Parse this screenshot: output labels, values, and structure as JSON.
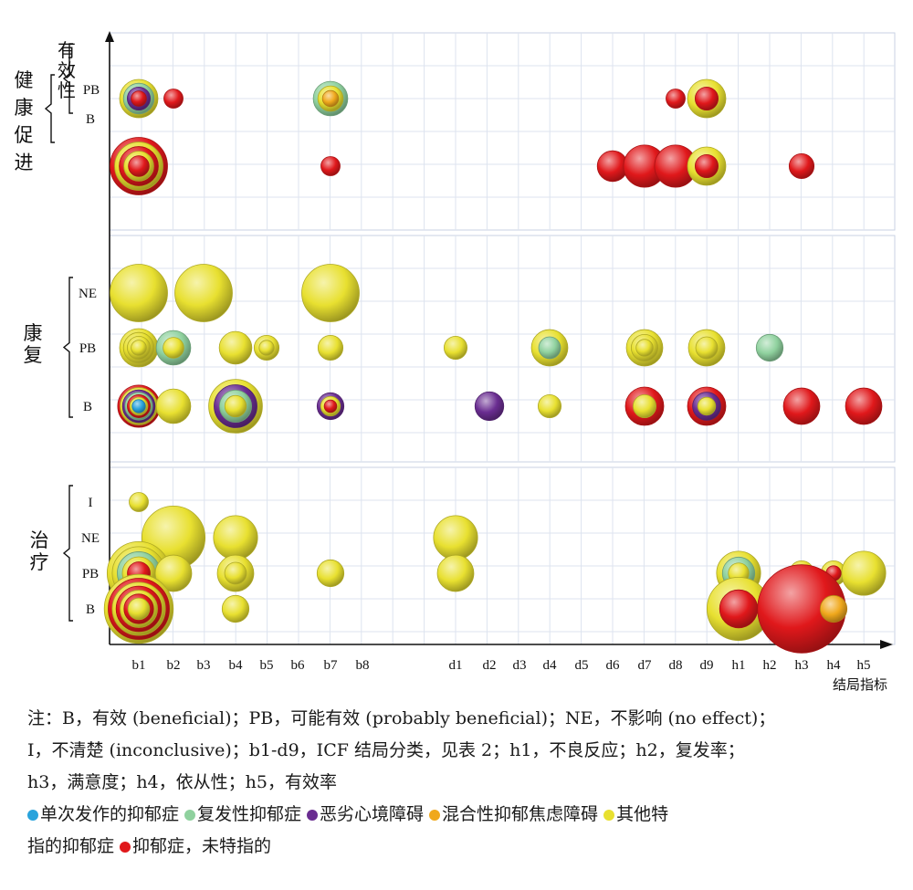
{
  "colors": {
    "single": "#29a3dc",
    "recurrent": "#8fd19e",
    "dysthymia": "#6a2d91",
    "mixed": "#f0a81c",
    "other": "#e8e030",
    "unspecified": "#e0181b"
  },
  "chart_data": {
    "type": "bubble",
    "title": "",
    "xlabel": "结局指标",
    "ylabel": "",
    "categories": [
      "b1",
      "b2",
      "b3",
      "b4",
      "b5",
      "b6",
      "b7",
      "b8",
      "d1",
      "d2",
      "d3",
      "d4",
      "d5",
      "d6",
      "d7",
      "d8",
      "d9",
      "h1",
      "h2",
      "h3",
      "h4",
      "h5"
    ],
    "groups": [
      {
        "name": "健康促进",
        "sublabel": "有效性",
        "rows": [
          "PB",
          "B"
        ]
      },
      {
        "name": "康复",
        "sublabel": "",
        "rows": [
          "NE",
          "PB",
          "B"
        ]
      },
      {
        "name": "治疗",
        "sublabel": "",
        "rows": [
          "I",
          "NE",
          "PB",
          "B"
        ]
      }
    ],
    "series": [
      {
        "name": "单次发作的抑郁症",
        "color_key": "single"
      },
      {
        "name": "复发性抑郁症",
        "color_key": "recurrent"
      },
      {
        "name": "恶劣心境障碍",
        "color_key": "dysthymia"
      },
      {
        "name": "混合性抑郁焦虑障碍",
        "color_key": "mixed"
      },
      {
        "name": "其他特指的抑郁症",
        "color_key": "other"
      },
      {
        "name": "抑郁症，未特指的",
        "color_key": "unspecified"
      }
    ],
    "bubbles": [
      {
        "group": 0,
        "row": "PB",
        "x": "b1",
        "size": 2,
        "layers": [
          "other",
          "recurrent",
          "dysthymia",
          "unspecified"
        ]
      },
      {
        "group": 0,
        "row": "PB",
        "x": "b2",
        "size": 1,
        "layers": [
          "unspecified"
        ]
      },
      {
        "group": 0,
        "row": "PB",
        "x": "b7",
        "size": 1.8,
        "layers": [
          "recurrent",
          "other",
          "mixed"
        ]
      },
      {
        "group": 0,
        "row": "PB",
        "x": "d8",
        "size": 1,
        "layers": [
          "unspecified"
        ]
      },
      {
        "group": 0,
        "row": "PB",
        "x": "d9",
        "size": 2,
        "layers": [
          "other",
          "unspecified"
        ]
      },
      {
        "group": 0,
        "row": "B",
        "x": "b1",
        "size": 3,
        "layers": [
          "unspecified",
          "other",
          "unspecified",
          "other",
          "unspecified"
        ]
      },
      {
        "group": 0,
        "row": "B",
        "x": "b7",
        "size": 1,
        "layers": [
          "unspecified"
        ]
      },
      {
        "group": 0,
        "row": "B",
        "x": "d6",
        "size": 1.6,
        "layers": [
          "unspecified"
        ]
      },
      {
        "group": 0,
        "row": "B",
        "x": "d7",
        "size": 2.2,
        "layers": [
          "unspecified"
        ]
      },
      {
        "group": 0,
        "row": "B",
        "x": "d8",
        "size": 2.2,
        "layers": [
          "unspecified"
        ]
      },
      {
        "group": 0,
        "row": "B",
        "x": "d9",
        "size": 2,
        "layers": [
          "other",
          "unspecified"
        ]
      },
      {
        "group": 0,
        "row": "B",
        "x": "h3",
        "size": 1.3,
        "layers": [
          "unspecified"
        ]
      },
      {
        "group": 1,
        "row": "NE",
        "x": "b1",
        "size": 3,
        "layers": [
          "other"
        ]
      },
      {
        "group": 1,
        "row": "NE",
        "x": "b3",
        "size": 3,
        "layers": [
          "other"
        ]
      },
      {
        "group": 1,
        "row": "NE",
        "x": "b7",
        "size": 3,
        "layers": [
          "other"
        ]
      },
      {
        "group": 1,
        "row": "PB",
        "x": "b1",
        "size": 2,
        "layers": [
          "other",
          "other",
          "other",
          "other"
        ]
      },
      {
        "group": 1,
        "row": "PB",
        "x": "b2",
        "size": 1.8,
        "layers": [
          "recurrent",
          "other"
        ]
      },
      {
        "group": 1,
        "row": "PB",
        "x": "b4",
        "size": 1.7,
        "layers": [
          "other"
        ]
      },
      {
        "group": 1,
        "row": "PB",
        "x": "b5",
        "size": 1.3,
        "layers": [
          "other",
          "other"
        ]
      },
      {
        "group": 1,
        "row": "PB",
        "x": "b7",
        "size": 1.3,
        "layers": [
          "other"
        ]
      },
      {
        "group": 1,
        "row": "PB",
        "x": "d1",
        "size": 1.2,
        "layers": [
          "other"
        ]
      },
      {
        "group": 1,
        "row": "PB",
        "x": "d4",
        "size": 1.9,
        "layers": [
          "other",
          "recurrent"
        ]
      },
      {
        "group": 1,
        "row": "PB",
        "x": "d7",
        "size": 1.9,
        "layers": [
          "other",
          "other",
          "other"
        ]
      },
      {
        "group": 1,
        "row": "PB",
        "x": "d9",
        "size": 1.9,
        "layers": [
          "other",
          "other"
        ]
      },
      {
        "group": 1,
        "row": "PB",
        "x": "h2",
        "size": 1.4,
        "layers": [
          "recurrent"
        ]
      },
      {
        "group": 1,
        "row": "B",
        "x": "b1",
        "size": 2.2,
        "layers": [
          "unspecified",
          "other",
          "dysthymia",
          "recurrent",
          "unspecified",
          "other",
          "single"
        ]
      },
      {
        "group": 1,
        "row": "B",
        "x": "b2",
        "size": 1.8,
        "layers": [
          "other"
        ]
      },
      {
        "group": 1,
        "row": "B",
        "x": "b4",
        "size": 2.8,
        "layers": [
          "other",
          "dysthymia",
          "recurrent",
          "other"
        ]
      },
      {
        "group": 1,
        "row": "B",
        "x": "b7",
        "size": 1.4,
        "layers": [
          "dysthymia",
          "other",
          "unspecified"
        ]
      },
      {
        "group": 1,
        "row": "B",
        "x": "d2",
        "size": 1.5,
        "layers": [
          "dysthymia"
        ]
      },
      {
        "group": 1,
        "row": "B",
        "x": "d4",
        "size": 1.2,
        "layers": [
          "other"
        ]
      },
      {
        "group": 1,
        "row": "B",
        "x": "d7",
        "size": 2,
        "layers": [
          "unspecified",
          "other"
        ]
      },
      {
        "group": 1,
        "row": "B",
        "x": "d9",
        "size": 2,
        "layers": [
          "unspecified",
          "dysthymia",
          "other"
        ]
      },
      {
        "group": 1,
        "row": "B",
        "x": "h3",
        "size": 1.9,
        "layers": [
          "unspecified"
        ]
      },
      {
        "group": 1,
        "row": "B",
        "x": "h5",
        "size": 1.9,
        "layers": [
          "unspecified"
        ]
      },
      {
        "group": 2,
        "row": "I",
        "x": "b1",
        "size": 1,
        "layers": [
          "other"
        ]
      },
      {
        "group": 2,
        "row": "NE",
        "x": "b2",
        "size": 3.3,
        "layers": [
          "other"
        ]
      },
      {
        "group": 2,
        "row": "NE",
        "x": "b4",
        "size": 2.3,
        "layers": [
          "other"
        ]
      },
      {
        "group": 2,
        "row": "NE",
        "x": "d1",
        "size": 2.3,
        "layers": [
          "other"
        ]
      },
      {
        "group": 2,
        "row": "PB",
        "x": "b1",
        "size": 3.3,
        "layers": [
          "other",
          "other",
          "recurrent",
          "other",
          "unspecified"
        ]
      },
      {
        "group": 2,
        "row": "PB",
        "x": "b2",
        "size": 1.9,
        "layers": [
          "other"
        ]
      },
      {
        "group": 2,
        "row": "PB",
        "x": "b4",
        "size": 1.9,
        "layers": [
          "other",
          "other"
        ]
      },
      {
        "group": 2,
        "row": "PB",
        "x": "b7",
        "size": 1.4,
        "layers": [
          "other"
        ]
      },
      {
        "group": 2,
        "row": "PB",
        "x": "d1",
        "size": 1.9,
        "layers": [
          "other"
        ]
      },
      {
        "group": 2,
        "row": "PB",
        "x": "h1",
        "size": 2.3,
        "layers": [
          "other",
          "recurrent",
          "other"
        ]
      },
      {
        "group": 2,
        "row": "PB",
        "x": "h3",
        "size": 1.3,
        "layers": [
          "other"
        ]
      },
      {
        "group": 2,
        "row": "PB",
        "x": "h4",
        "size": 1.3,
        "layers": [
          "other",
          "unspecified"
        ]
      },
      {
        "group": 2,
        "row": "PB",
        "x": "h5",
        "size": 2.3,
        "layers": [
          "other"
        ]
      },
      {
        "group": 2,
        "row": "B",
        "x": "b1",
        "size": 3.6,
        "layers": [
          "other",
          "unspecified",
          "other",
          "unspecified",
          "other",
          "unspecified",
          "other"
        ]
      },
      {
        "group": 2,
        "row": "B",
        "x": "b4",
        "size": 1.4,
        "layers": [
          "other"
        ]
      },
      {
        "group": 2,
        "row": "B",
        "x": "h1",
        "size": 3.3,
        "layers": [
          "other",
          "unspecified"
        ]
      },
      {
        "group": 2,
        "row": "B",
        "x": "h3",
        "size": 4.6,
        "layers": [
          "unspecified"
        ]
      },
      {
        "group": 2,
        "row": "B",
        "x": "h4",
        "size": 1.4,
        "layers": [
          "mixed"
        ]
      }
    ]
  },
  "notes": {
    "line1": "注：B，有效 (beneficial)；PB，可能有效 (probably beneficial)；NE，不影响 (no effect)；",
    "line2": "I，不清楚 (inconclusive)；b1-d9，ICF 结局分类，见表 2；h1，不良反应；h2，复发率；",
    "line3": "h3，满意度；h4，依从性；h5，有效率"
  },
  "legend_line2_prefix": "指的抑郁症",
  "legend_items": [
    {
      "label": "单次发作的抑郁症",
      "color_key": "single"
    },
    {
      "label": "复发性抑郁症",
      "color_key": "recurrent"
    },
    {
      "label": "恶劣心境障碍",
      "color_key": "dysthymia"
    },
    {
      "label": "混合性抑郁焦虑障碍",
      "color_key": "mixed"
    },
    {
      "label": "其他特",
      "color_key": "other"
    },
    {
      "label": "抑郁症，未特指的",
      "color_key": "unspecified"
    }
  ]
}
